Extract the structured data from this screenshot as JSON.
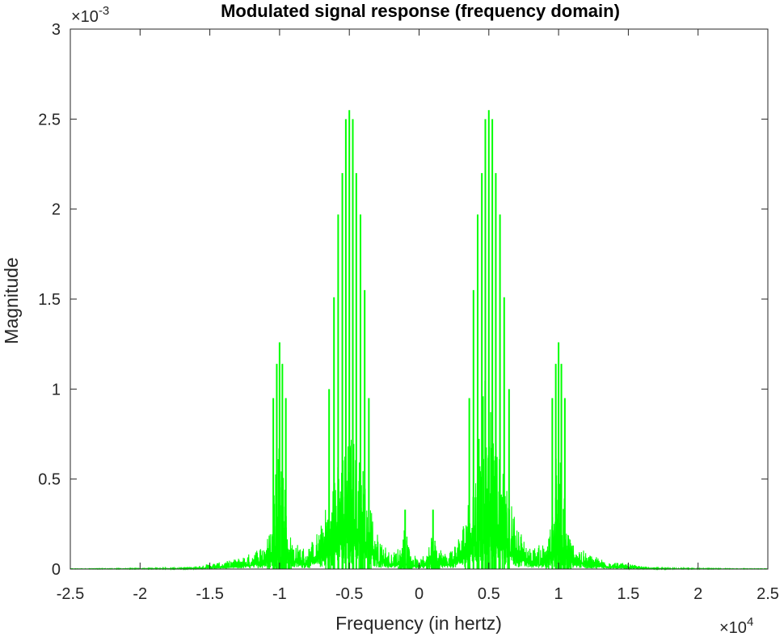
{
  "chart_data": {
    "type": "line",
    "title": "Modulated signal response (frequency domain)",
    "xlabel": "Frequency (in hertz)",
    "ylabel": "Magnitude",
    "x_scale_label": "×10",
    "x_scale_exponent": "4",
    "y_scale_label": "×10",
    "y_scale_exponent": "-3",
    "xlim": [
      -25000,
      25000
    ],
    "ylim": [
      0,
      0.003
    ],
    "x_ticks": [
      -25000,
      -20000,
      -15000,
      -10000,
      -5000,
      0,
      5000,
      10000,
      15000,
      20000,
      25000
    ],
    "x_tick_labels": [
      "-2.5",
      "-2",
      "-1.5",
      "-1",
      "-0.5",
      "0",
      "0.5",
      "1",
      "1.5",
      "2",
      "2.5"
    ],
    "y_ticks": [
      0,
      0.0005,
      0.001,
      0.0015,
      0.002,
      0.0025,
      0.003
    ],
    "y_tick_labels": [
      "0",
      "0.5",
      "1",
      "1.5",
      "2",
      "2.5",
      "3"
    ],
    "grid": false,
    "line_color": "#00ff00",
    "series": [
      {
        "peaks": [
          {
            "x": -10000,
            "y": 0.00126
          },
          {
            "x": -10200,
            "y": 0.00114
          },
          {
            "x": -9800,
            "y": 0.00114
          },
          {
            "x": -10450,
            "y": 0.00095
          },
          {
            "x": -9550,
            "y": 0.00095
          },
          {
            "x": -5000,
            "y": 0.00255
          },
          {
            "x": -5250,
            "y": 0.0025
          },
          {
            "x": -4750,
            "y": 0.0025
          },
          {
            "x": -5500,
            "y": 0.0022
          },
          {
            "x": -4500,
            "y": 0.0022
          },
          {
            "x": -5800,
            "y": 0.00197
          },
          {
            "x": -4200,
            "y": 0.00197
          },
          {
            "x": -6100,
            "y": 0.00151
          },
          {
            "x": -3900,
            "y": 0.00155
          },
          {
            "x": -6450,
            "y": 0.001
          },
          {
            "x": -3600,
            "y": 0.00095
          },
          {
            "x": -1000,
            "y": 0.00033
          },
          {
            "x": 1000,
            "y": 0.00033
          },
          {
            "x": 3600,
            "y": 0.00095
          },
          {
            "x": 3900,
            "y": 0.00155
          },
          {
            "x": 4200,
            "y": 0.00197
          },
          {
            "x": 4500,
            "y": 0.0022
          },
          {
            "x": 4750,
            "y": 0.0025
          },
          {
            "x": 5000,
            "y": 0.00255
          },
          {
            "x": 5250,
            "y": 0.0025
          },
          {
            "x": 5500,
            "y": 0.0022
          },
          {
            "x": 5800,
            "y": 0.00197
          },
          {
            "x": 6100,
            "y": 0.00151
          },
          {
            "x": 6450,
            "y": 0.001
          },
          {
            "x": 9550,
            "y": 0.00095
          },
          {
            "x": 9800,
            "y": 0.00114
          },
          {
            "x": 10000,
            "y": 0.00126
          },
          {
            "x": 10200,
            "y": 0.00114
          },
          {
            "x": 10450,
            "y": 0.00095
          }
        ],
        "envelope": [
          {
            "x": -25000,
            "y": 2e-06
          },
          {
            "x": -20000,
            "y": 4e-06
          },
          {
            "x": -17000,
            "y": 8e-06
          },
          {
            "x": -16000,
            "y": 1.5e-05
          },
          {
            "x": -15000,
            "y": 3e-05
          },
          {
            "x": -14000,
            "y": 4e-05
          },
          {
            "x": -13000,
            "y": 6e-05
          },
          {
            "x": -12000,
            "y": 9e-05
          },
          {
            "x": -11000,
            "y": 0.00015
          },
          {
            "x": -10000,
            "y": 0.00035
          },
          {
            "x": -9000,
            "y": 0.00015
          },
          {
            "x": -8000,
            "y": 0.00011
          },
          {
            "x": -7000,
            "y": 0.00025
          },
          {
            "x": -6000,
            "y": 0.00055
          },
          {
            "x": -5000,
            "y": 0.0008
          },
          {
            "x": -4000,
            "y": 0.00055
          },
          {
            "x": -3000,
            "y": 0.0002
          },
          {
            "x": -2000,
            "y": 8e-05
          },
          {
            "x": -1000,
            "y": 0.00016
          },
          {
            "x": 0,
            "y": 4e-05
          },
          {
            "x": 1000,
            "y": 0.00016
          },
          {
            "x": 2000,
            "y": 8e-05
          },
          {
            "x": 3000,
            "y": 0.0002
          },
          {
            "x": 4000,
            "y": 0.00055
          },
          {
            "x": 5000,
            "y": 0.0008
          },
          {
            "x": 6000,
            "y": 0.00055
          },
          {
            "x": 7000,
            "y": 0.00025
          },
          {
            "x": 8000,
            "y": 0.00011
          },
          {
            "x": 9000,
            "y": 0.00015
          },
          {
            "x": 10000,
            "y": 0.00035
          },
          {
            "x": 11000,
            "y": 0.00015
          },
          {
            "x": 12000,
            "y": 9e-05
          },
          {
            "x": 13000,
            "y": 6e-05
          },
          {
            "x": 14000,
            "y": 4e-05
          },
          {
            "x": 15000,
            "y": 3e-05
          },
          {
            "x": 16000,
            "y": 1.5e-05
          },
          {
            "x": 17000,
            "y": 8e-06
          },
          {
            "x": 20000,
            "y": 4e-06
          },
          {
            "x": 25000,
            "y": 2e-06
          }
        ]
      }
    ]
  }
}
